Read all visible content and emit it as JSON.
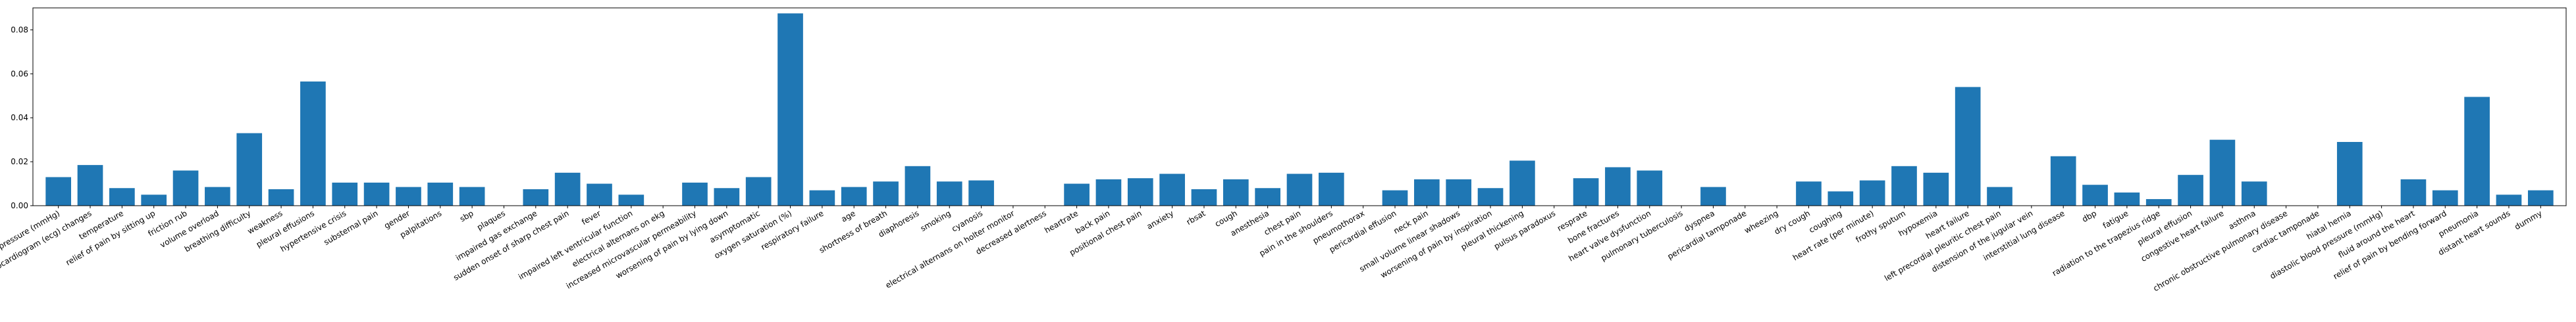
{
  "chart_data": {
    "type": "bar",
    "title": "",
    "xlabel": "",
    "ylabel": "",
    "ylim": [
      0,
      0.09
    ],
    "yticks": [
      0.0,
      0.02,
      0.04,
      0.06,
      0.08
    ],
    "ytick_labels": [
      "0.00",
      "0.02",
      "0.04",
      "0.06",
      "0.08"
    ],
    "bar_color": "#1f77b4",
    "grid": false,
    "categories": [
      "systolic blood pressure (mmHg)",
      "specific electrocardiogram (ecg) changes",
      "temperature",
      "relief of pain by sitting up",
      "friction rub",
      "volume overload",
      "breathing difficulty",
      "weakness",
      "pleural effusions",
      "hypertensive crisis",
      "substernal pain",
      "gender",
      "palpitations",
      "sbp",
      "plaques",
      "impaired gas exchange",
      "sudden onset of sharp chest pain",
      "fever",
      "impaired left ventricular function",
      "electrical alternans on ekg",
      "increased microvascular permeability",
      "worsening of pain by lying down",
      "asymptomatic",
      "oxygen saturation (%)",
      "respiratory failure",
      "age",
      "shortness of breath",
      "diaphoresis",
      "smoking",
      "cyanosis",
      "electrical alternans on holter monitor",
      "decreased alertness",
      "heartrate",
      "back pain",
      "positional chest pain",
      "anxiety",
      "rbsat",
      "cough",
      "anesthesia",
      "chest pain",
      "pain in the shoulders",
      "pneumothorax",
      "pericardial effusion",
      "neck pain",
      "small volume linear shadows",
      "worsening of pain by inspiration",
      "pleural thickening",
      "pulsus paradoxus",
      "resprate",
      "bone fractures",
      "heart valve dysfunction",
      "pulmonary tuberculosis",
      "dyspnea",
      "pericardial tamponade",
      "wheezing",
      "dry cough",
      "coughing",
      "heart rate (per minute)",
      "frothy sputum",
      "hypoxemia",
      "heart failure",
      "left precordial pleuritic chest pain",
      "distension of the jugular vein",
      "interstitial lung disease",
      "dbp",
      "fatigue",
      "radiation to the trapezius ridge",
      "pleural effusion",
      "congestive heart failure",
      "asthma",
      "chronic obstructive pulmonary disease",
      "cardiac tamponade",
      "hiatal hernia",
      "diastolic blood pressure (mmHg)",
      "fluid around the heart",
      "relief of pain by bending forward",
      "pneumonia",
      "distant heart sounds",
      "dummy"
    ],
    "values": [
      0.013,
      0.0185,
      0.008,
      0.005,
      0.016,
      0.0085,
      0.033,
      0.0075,
      0.0565,
      0.0105,
      0.0105,
      0.0085,
      0.0105,
      0.0085,
      0.0,
      0.0075,
      0.015,
      0.01,
      0.005,
      0.0,
      0.0105,
      0.008,
      0.013,
      0.0875,
      0.007,
      0.0085,
      0.011,
      0.018,
      0.011,
      0.0115,
      0.0,
      0.0,
      0.01,
      0.012,
      0.0125,
      0.0145,
      0.0075,
      0.012,
      0.008,
      0.0145,
      0.015,
      0.0,
      0.007,
      0.012,
      0.012,
      0.008,
      0.0205,
      0.0,
      0.0125,
      0.0175,
      0.016,
      0.0,
      0.0085,
      0.0,
      0.0,
      0.011,
      0.0065,
      0.0115,
      0.018,
      0.015,
      0.054,
      0.0085,
      0.0,
      0.0225,
      0.0095,
      0.006,
      0.003,
      0.014,
      0.03,
      0.011,
      0.0,
      0.0,
      0.029,
      0.0,
      0.012,
      0.007,
      0.0495,
      0.005,
      0.007
    ]
  }
}
